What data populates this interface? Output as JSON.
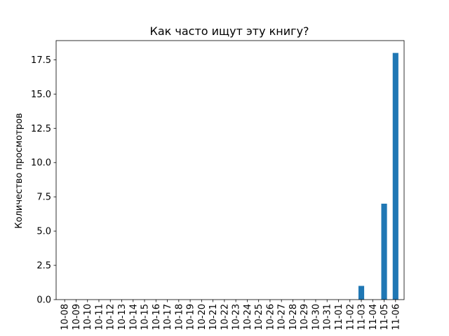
{
  "chart_data": {
    "type": "bar",
    "title": "Как часто ищут эту книгу?",
    "xlabel": "",
    "ylabel": "Количество просмотров",
    "categories": [
      "10-08",
      "10-09",
      "10-10",
      "10-11",
      "10-12",
      "10-13",
      "10-14",
      "10-15",
      "10-16",
      "10-17",
      "10-18",
      "10-19",
      "10-20",
      "10-21",
      "10-22",
      "10-23",
      "10-24",
      "10-25",
      "10-26",
      "10-27",
      "10-28",
      "10-29",
      "10-30",
      "10-31",
      "11-01",
      "11-02",
      "11-03",
      "11-04",
      "11-05",
      "11-06"
    ],
    "values": [
      0,
      0,
      0,
      0,
      0,
      0,
      0,
      0,
      0,
      0,
      0,
      0,
      0,
      0,
      0,
      0,
      0,
      0,
      0,
      0,
      0,
      0,
      0,
      0,
      0,
      0,
      1,
      0,
      7,
      18
    ],
    "ylim": [
      0,
      18.9
    ],
    "yticks": [
      "0.0",
      "2.5",
      "5.0",
      "7.5",
      "10.0",
      "12.5",
      "15.0",
      "17.5"
    ],
    "grid": false,
    "bar_color": "#1f77b4"
  }
}
